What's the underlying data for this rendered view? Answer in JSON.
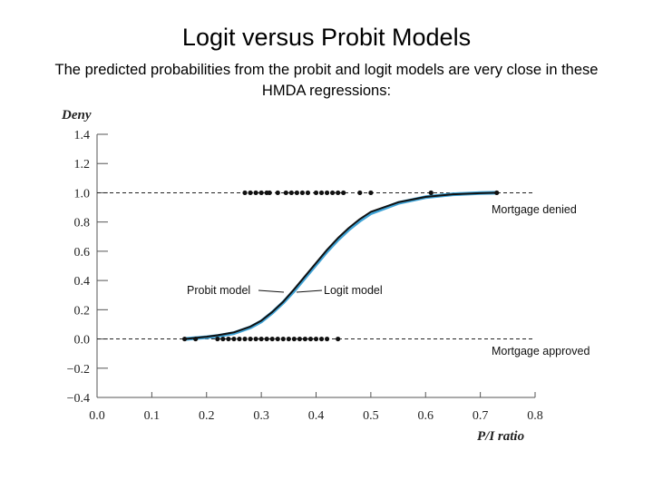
{
  "page": {
    "title": "Logit versus Probit Models",
    "subtitle": "The predicted probabilities from the probit and logit models are very close in these HMDA regressions:"
  },
  "chart_data": {
    "type": "line",
    "xlabel": "P/I ratio",
    "ylabel": "Deny",
    "xlim": [
      0.0,
      0.8
    ],
    "ylim": [
      -0.4,
      1.4
    ],
    "xticks": [
      "0.0",
      "0.1",
      "0.2",
      "0.3",
      "0.4",
      "0.5",
      "0.6",
      "0.7",
      "0.8"
    ],
    "yticks": [
      "1.4",
      "1.2",
      "1.0",
      "0.8",
      "0.6",
      "0.4",
      "0.2",
      "0.0",
      "−0.2",
      "−0.4"
    ],
    "xtick_values": [
      0.0,
      0.1,
      0.2,
      0.3,
      0.4,
      0.5,
      0.6,
      0.7,
      0.8
    ],
    "ytick_values": [
      1.4,
      1.2,
      1.0,
      0.8,
      0.6,
      0.4,
      0.2,
      0.0,
      -0.2,
      -0.4
    ],
    "reference_lines": [
      1.0,
      0.0
    ],
    "series": [
      {
        "name": "Probit model",
        "color": "#3fa3d6",
        "x": [
          0.16,
          0.2,
          0.22,
          0.25,
          0.28,
          0.3,
          0.32,
          0.34,
          0.36,
          0.38,
          0.4,
          0.42,
          0.44,
          0.46,
          0.48,
          0.5,
          0.55,
          0.6,
          0.65,
          0.7,
          0.73
        ],
        "y": [
          0.0,
          0.012,
          0.02,
          0.04,
          0.08,
          0.12,
          0.18,
          0.25,
          0.33,
          0.42,
          0.51,
          0.6,
          0.68,
          0.75,
          0.81,
          0.86,
          0.93,
          0.97,
          0.99,
          0.998,
          1.0
        ]
      },
      {
        "name": "Logit model",
        "color": "#111111",
        "x": [
          0.16,
          0.2,
          0.22,
          0.25,
          0.28,
          0.3,
          0.32,
          0.34,
          0.36,
          0.38,
          0.4,
          0.42,
          0.44,
          0.46,
          0.48,
          0.5,
          0.55,
          0.6,
          0.65,
          0.7,
          0.73
        ],
        "y": [
          0.0,
          0.015,
          0.025,
          0.045,
          0.085,
          0.125,
          0.185,
          0.255,
          0.34,
          0.43,
          0.52,
          0.61,
          0.69,
          0.76,
          0.82,
          0.87,
          0.935,
          0.972,
          0.99,
          0.997,
          1.0
        ]
      }
    ],
    "points_denied": {
      "y": 1.0,
      "x": [
        0.27,
        0.28,
        0.29,
        0.3,
        0.31,
        0.315,
        0.33,
        0.345,
        0.355,
        0.365,
        0.375,
        0.385,
        0.4,
        0.41,
        0.42,
        0.43,
        0.44,
        0.45,
        0.48,
        0.5,
        0.61,
        0.73
      ]
    },
    "points_approved": {
      "y": 0.0,
      "x": [
        0.16,
        0.18,
        0.22,
        0.23,
        0.24,
        0.25,
        0.26,
        0.27,
        0.28,
        0.29,
        0.3,
        0.31,
        0.32,
        0.33,
        0.34,
        0.35,
        0.36,
        0.37,
        0.38,
        0.39,
        0.4,
        0.41,
        0.42,
        0.44
      ]
    },
    "annotations": {
      "probit": "Probit model",
      "logit": "Logit model",
      "denied": "Mortgage denied",
      "approved": "Mortgage approved"
    }
  }
}
